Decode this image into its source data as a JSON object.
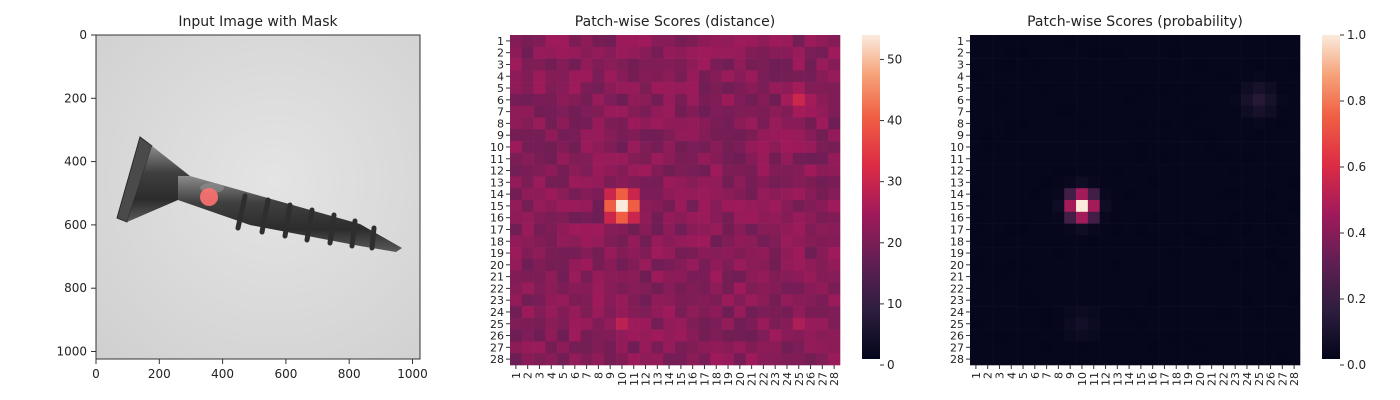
{
  "chart_data": [
    {
      "type": "image",
      "title": "Input Image with Mask",
      "xticks": [
        "0",
        "200",
        "400",
        "600",
        "800",
        "1000"
      ],
      "yticks": [
        "0",
        "200",
        "400",
        "600",
        "800",
        "1000"
      ],
      "xlim": [
        0,
        1024
      ],
      "ylim": [
        1024,
        0
      ],
      "image": "gray-screw",
      "mask": {
        "color": "#ff7070",
        "cx": 360,
        "cy": 510,
        "r": 28
      }
    },
    {
      "type": "heatmap",
      "title": "Patch-wise Scores (distance)",
      "rows": 28,
      "cols": 28,
      "row_labels": [
        "1",
        "2",
        "3",
        "4",
        "5",
        "6",
        "7",
        "8",
        "9",
        "10",
        "11",
        "12",
        "13",
        "14",
        "15",
        "16",
        "17",
        "18",
        "19",
        "20",
        "21",
        "22",
        "23",
        "24",
        "25",
        "26",
        "27",
        "28"
      ],
      "col_labels": [
        "1",
        "2",
        "3",
        "4",
        "5",
        "6",
        "7",
        "8",
        "9",
        "10",
        "11",
        "12",
        "13",
        "14",
        "15",
        "16",
        "17",
        "18",
        "19",
        "20",
        "21",
        "22",
        "23",
        "24",
        "25",
        "26",
        "27",
        "28"
      ],
      "colorbar_ticks": [
        "0",
        "10",
        "20",
        "30",
        "40",
        "50"
      ],
      "vmin": 0,
      "vmax": 54,
      "colormap": "rocket",
      "hotspots": [
        {
          "row": 15,
          "col": 10,
          "value": 54,
          "sigma": 1.3
        },
        {
          "row": 6,
          "col": 25,
          "value": 30,
          "sigma": 1.6
        },
        {
          "row": 25,
          "col": 10,
          "value": 28,
          "sigma": 1.5
        },
        {
          "row": 25,
          "col": 25,
          "value": 26,
          "sigma": 1.5
        }
      ],
      "base_value": 21
    },
    {
      "type": "heatmap",
      "title": "Patch-wise Scores (probability)",
      "rows": 28,
      "cols": 28,
      "row_labels": [
        "1",
        "2",
        "3",
        "4",
        "5",
        "6",
        "7",
        "8",
        "9",
        "10",
        "11",
        "12",
        "13",
        "14",
        "15",
        "16",
        "17",
        "18",
        "19",
        "20",
        "21",
        "22",
        "23",
        "24",
        "25",
        "26",
        "27",
        "28"
      ],
      "col_labels": [
        "1",
        "2",
        "3",
        "4",
        "5",
        "6",
        "7",
        "8",
        "9",
        "10",
        "11",
        "12",
        "13",
        "14",
        "15",
        "16",
        "17",
        "18",
        "19",
        "20",
        "21",
        "22",
        "23",
        "24",
        "25",
        "26",
        "27",
        "28"
      ],
      "colorbar_ticks": [
        "0.0",
        "0.2",
        "0.4",
        "0.6",
        "0.8",
        "1.0"
      ],
      "vmin": 0,
      "vmax": 1,
      "colormap": "rocket",
      "hotspots": [
        {
          "row": 15,
          "col": 10,
          "value": 1.0,
          "sigma": 0.8
        },
        {
          "row": 6,
          "col": 25,
          "value": 0.12,
          "sigma": 1.0
        },
        {
          "row": 25,
          "col": 10,
          "value": 0.06,
          "sigma": 1.0
        }
      ],
      "base_value": 0.01
    }
  ]
}
